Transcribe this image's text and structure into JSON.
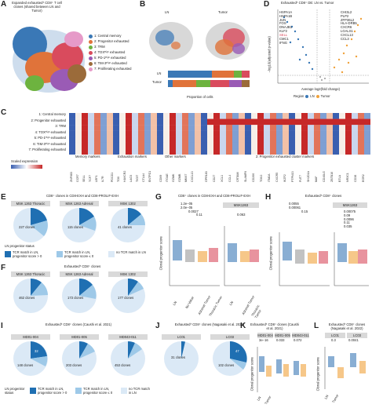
{
  "panels": {
    "A": {
      "label": "A",
      "title": "Expanded exhausted* CD8⁺ T cell clones (shared between LN and Tumor)",
      "legend": [
        {
          "text": "1: Central memory",
          "color": "#3a78b6"
        },
        {
          "text": "2: Progenitor exhausted",
          "color": "#e0733a"
        },
        {
          "text": "3: TRM",
          "color": "#6db33f"
        },
        {
          "text": "4: TOXᴴⁱᵍʰ exhausted",
          "color": "#d94b5d"
        },
        {
          "text": "5: PD-1ᴴⁱᵍʰ exhausted",
          "color": "#9a5bb5"
        },
        {
          "text": "6: TIM-3ᴴⁱᵍʰ exhausted",
          "color": "#9b6b3a"
        },
        {
          "text": "7: Proliferating exhausted",
          "color": "#e69ac8"
        }
      ]
    },
    "B": {
      "label": "B",
      "ln": "LN",
      "tumor": "Tumor",
      "bar_rows": [
        "LN",
        "Tumor"
      ],
      "xlabel": "Proportion of cells"
    },
    "D": {
      "label": "D",
      "title": "Exhausted* CD8⁺ DE: LN vs. Tumor",
      "ylabel": "−log10(adjusted p-value)",
      "xlabel": "Average log2(fold change)",
      "region_label": "Region",
      "region_ln": "LN",
      "region_tumor": "Tumor",
      "genes_left": [
        "HSPA1A",
        "HSPA1B",
        "JUN",
        "FOS",
        "DNAJB1",
        "KLF2",
        "SELL",
        "CMC1",
        "IFNG"
      ],
      "genes_right": [
        "CHI3L2",
        "PLP2",
        "ZFP36L2",
        "HLA-DRB5",
        "CXCR6",
        "LGALS1",
        "CXCL13",
        "CCL3"
      ]
    },
    "C": {
      "label": "C",
      "rows": [
        "1: Central memory",
        "2: Progenitor exhausted",
        "3: TRM",
        "4: TOXᴴⁱᵍʰ exhausted",
        "5: PD-1ᴴⁱᵍʰ exhausted",
        "6: TIM-3ᴴⁱᵍʰ exhausted",
        "7: Proliferating exhausted"
      ],
      "groups": [
        "Memory markers",
        "Exhaustion markers",
        "Other markers",
        "2: Progenitor exhausted cluster markers"
      ],
      "scale_label": "Scaled expression"
    },
    "E": {
      "label": "E",
      "title": "CD8⁺ clones in CD8-EXH and CD8-PROLIF-EXH",
      "pies": [
        {
          "header": "MSK 1263 Thoracic",
          "text": "227 clones"
        },
        {
          "header": "MSK 1263 Adrenal",
          "text": "115 clones"
        },
        {
          "header": "MSK 1302",
          "text": "41 clones"
        }
      ],
      "legend_title": "LN progenitor status",
      "legend_items": [
        "TCR match in LN, progenitor score > 0",
        "TCR match in LN, progenitor score ≤ 0",
        "no TCR match in LN"
      ]
    },
    "F": {
      "label": "F",
      "title": "Exhausted* CD8⁺ clones",
      "pies": [
        {
          "header": "MSK 1263 Thoracic",
          "text": "462 clones"
        },
        {
          "header": "MSK 1263 Adrenal",
          "text": "173 clones"
        },
        {
          "header": "MSK 1302",
          "text": "177 clones"
        }
      ]
    },
    "G": {
      "label": "G",
      "title": "CD8⁺ clones in CD8-EXH and CD8-PROLIF-EXH",
      "header1": "MSK 1263",
      "header2": "MSK1263",
      "ylabel": "Clonal progenitor score",
      "pvals": [
        "1.2e−05",
        "2.0e−05",
        "0.0027",
        "0.11",
        "0.063"
      ],
      "x_left": [
        "LN",
        "No Value",
        "Adrenal Tumor",
        "Thoracic Tumor"
      ],
      "x_right": [
        "LN",
        "Adrenal Tumor",
        "Thoracic Tumor"
      ]
    },
    "H": {
      "label": "H",
      "title": "Exhausted* CD8⁺ clones",
      "header2": "MSK1263",
      "ylabel": "Clonal progenitor score",
      "pvals": [
        "0.0055",
        "0.00061",
        "0.15",
        "0.00075",
        "0.09",
        "0.0096",
        "0.11",
        "0.035"
      ]
    },
    "I": {
      "label": "I",
      "title": "Exhausted* CD8⁺ clones (Caushi et al. 2021)",
      "pies": [
        {
          "header": "MD01-004",
          "inner": "32",
          "text": "148 clones"
        },
        {
          "header": "MD01-005",
          "inner": "",
          "text": "203 clones"
        },
        {
          "header": "MD043-011",
          "inner": "",
          "text": "453 clones"
        }
      ],
      "legend_title": "LN progenitor status",
      "legend_items": [
        "TCR match in LN, progenitor score > 0",
        "TCR match in LN, progenitor score ≤ 0",
        "no TCR match in LN"
      ]
    },
    "J": {
      "label": "J",
      "title": "Exhausted* CD8⁺ clones (Nagasaki et al. 2022)",
      "pies": [
        {
          "header": "LC01",
          "inner": "",
          "text": "31 clones"
        },
        {
          "header": "LC03",
          "inner": "47",
          "text": "102 clones"
        }
      ]
    },
    "K": {
      "label": "K",
      "title": "Exhausted* CD8⁺ clones (Caushi et al. 2021)",
      "headers": [
        "MD01-004",
        "MD01-005",
        "MD043-011"
      ],
      "pvals": [
        "3e−16",
        "0.033",
        "0.072"
      ],
      "ylabel": "Clonal progenitor score",
      "x": [
        "LN",
        "Tumor"
      ]
    },
    "L": {
      "label": "L",
      "title": "Exhausted* CD8⁺ clones (Nagasaki et al. 2022)",
      "headers": [
        "LC01",
        "LC03"
      ],
      "pvals": [
        "0.3",
        "0.0041"
      ],
      "ylabel": "Clonal progenitor score",
      "x": [
        "LN",
        "Tumor"
      ]
    }
  },
  "colors": {
    "dark_blue": "#1f6fb2",
    "light_blue": "#9ec9e8",
    "pale_blue": "#dbe9f6",
    "orange": "#e8a23a",
    "ln_blue": "#3a78b6",
    "tumor_orange": "#f0a23b"
  }
}
